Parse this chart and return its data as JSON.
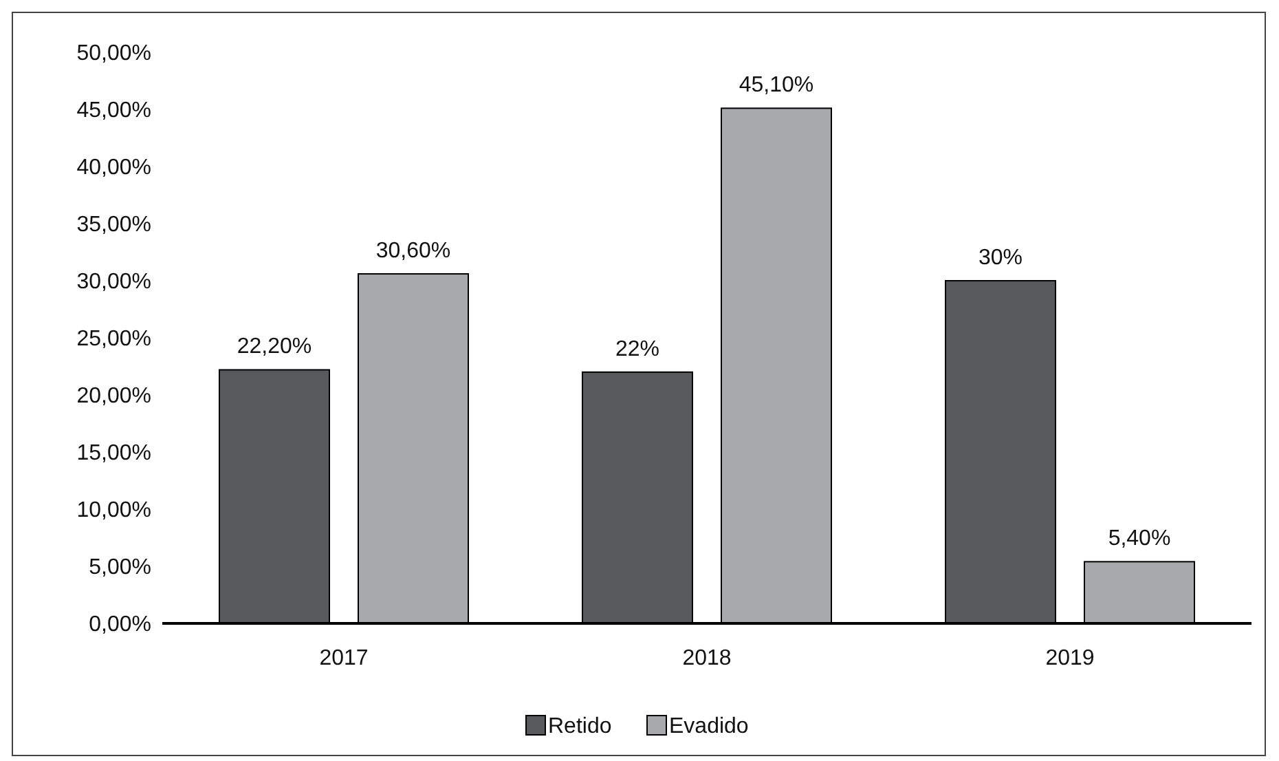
{
  "chart_data": {
    "type": "bar",
    "categories": [
      "2017",
      "2018",
      "2019"
    ],
    "series": [
      {
        "name": "Retido",
        "color": "#58595b",
        "values": [
          22.2,
          22,
          30
        ],
        "value_labels": [
          "22,20%",
          "22%",
          "30%"
        ]
      },
      {
        "name": "Evadido",
        "color": "#a7a9ac",
        "values": [
          30.6,
          45.1,
          5.4
        ],
        "value_labels": [
          "30,60%",
          "45,10%",
          "5,40%"
        ]
      }
    ],
    "ylim": [
      0,
      50
    ],
    "yticks": [
      {
        "value": 0,
        "label": "0,00%"
      },
      {
        "value": 5,
        "label": "5,00%"
      },
      {
        "value": 10,
        "label": "10,00%"
      },
      {
        "value": 15,
        "label": "15,00%"
      },
      {
        "value": 20,
        "label": "20,00%"
      },
      {
        "value": 25,
        "label": "25,00%"
      },
      {
        "value": 30,
        "label": "30,00%"
      },
      {
        "value": 35,
        "label": "35,00%"
      },
      {
        "value": 40,
        "label": "40,00%"
      },
      {
        "value": 45,
        "label": "45,00%"
      },
      {
        "value": 50,
        "label": "50,00%"
      }
    ],
    "legend": "bottom"
  }
}
